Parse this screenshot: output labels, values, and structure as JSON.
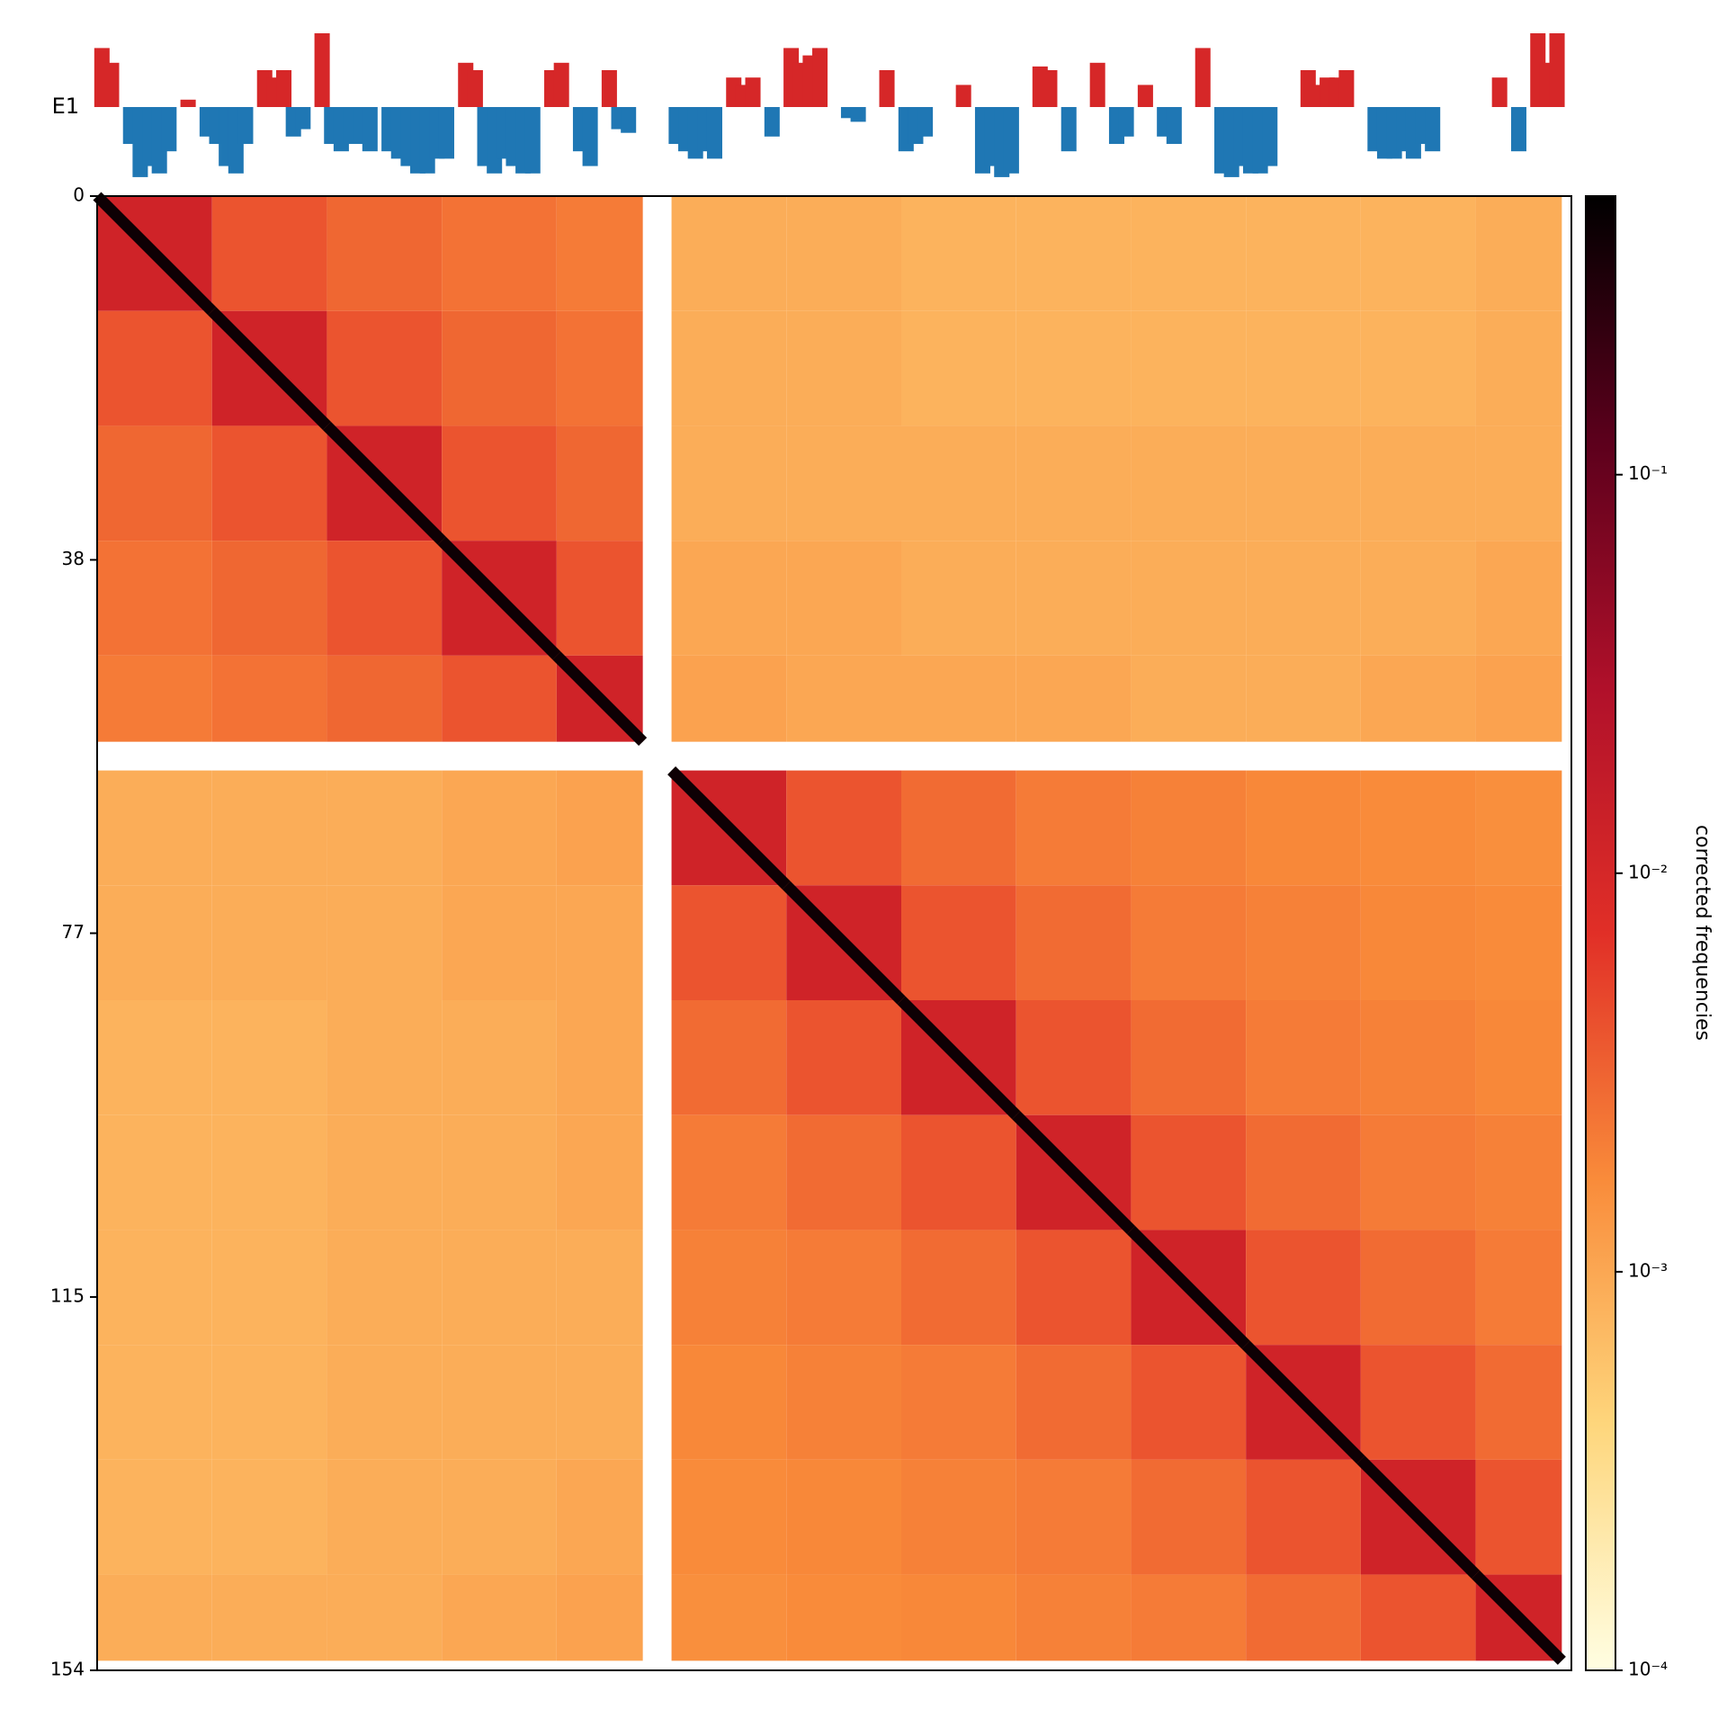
{
  "chart_data": {
    "type": "heatmap",
    "track": {
      "label": "E1",
      "ylim": [
        -1,
        1
      ],
      "positive_color": "#d62728",
      "negative_color": "#1f77b4",
      "x": [
        0,
        1,
        3,
        4,
        5,
        6,
        7,
        9,
        11,
        12,
        13,
        14,
        15,
        17,
        18,
        19,
        20,
        21,
        23,
        24,
        25,
        26,
        27,
        28,
        30,
        31,
        32,
        33,
        34,
        35,
        36,
        38,
        39,
        40,
        41,
        42,
        43,
        44,
        45,
        47,
        48,
        50,
        51,
        53,
        54,
        55,
        60,
        61,
        62,
        63,
        64,
        66,
        67,
        68,
        70,
        72,
        73,
        74,
        75,
        78,
        79,
        82,
        84,
        85,
        86,
        90,
        92,
        93,
        94,
        95,
        98,
        99,
        101,
        104,
        106,
        107,
        109,
        111,
        112,
        115,
        117,
        118,
        119,
        120,
        121,
        122,
        126,
        127,
        128,
        129,
        130,
        133,
        134,
        135,
        136,
        137,
        138,
        139,
        146,
        148,
        150,
        151,
        152
      ],
      "values": [
        0.8,
        0.6,
        -0.5,
        -0.95,
        -0.8,
        -0.9,
        -0.6,
        0.1,
        -0.4,
        -0.5,
        -0.8,
        -0.9,
        -0.5,
        0.5,
        0.4,
        0.5,
        -0.4,
        -0.3,
        1.0,
        -0.5,
        -0.6,
        -0.5,
        -0.5,
        -0.6,
        -0.6,
        -0.7,
        -0.8,
        -0.9,
        -0.9,
        -0.7,
        -0.7,
        0.6,
        0.5,
        -0.8,
        -0.9,
        -0.7,
        -0.8,
        -0.9,
        -0.9,
        0.5,
        0.6,
        -0.6,
        -0.8,
        0.5,
        -0.3,
        -0.35,
        -0.5,
        -0.6,
        -0.7,
        -0.6,
        -0.7,
        0.4,
        0.3,
        0.4,
        -0.4,
        0.8,
        0.6,
        0.7,
        0.8,
        -0.15,
        -0.2,
        0.5,
        -0.6,
        -0.5,
        -0.4,
        0.3,
        -0.9,
        -0.8,
        -0.95,
        -0.9,
        0.55,
        0.5,
        -0.6,
        0.6,
        -0.5,
        -0.4,
        0.3,
        -0.4,
        -0.5,
        0.8,
        -0.9,
        -0.95,
        -0.8,
        -0.9,
        -0.9,
        -0.8,
        0.5,
        0.3,
        0.4,
        0.4,
        0.5,
        -0.6,
        -0.7,
        -0.7,
        -0.6,
        -0.7,
        -0.5,
        -0.6,
        0.4,
        -0.6,
        1.0,
        0.6,
        1.0
      ]
    },
    "bin_edges": [
      0,
      12,
      24,
      36,
      48,
      57,
      60,
      72,
      84,
      96,
      108,
      120,
      132,
      144,
      153
    ],
    "ylim": [
      0,
      154
    ],
    "yticks": [
      0,
      38,
      77,
      115,
      154
    ],
    "matrix": [
      [
        0.012,
        0.004,
        0.003,
        0.0025,
        0.0022,
        null,
        0.0009,
        0.0009,
        0.0008,
        0.0008,
        0.0008,
        0.0008,
        0.0008,
        0.0009
      ],
      [
        0.004,
        0.012,
        0.004,
        0.003,
        0.0025,
        null,
        0.0009,
        0.0009,
        0.0008,
        0.0008,
        0.0008,
        0.0008,
        0.0008,
        0.0009
      ],
      [
        0.003,
        0.004,
        0.012,
        0.004,
        0.003,
        null,
        0.0009,
        0.0009,
        0.0009,
        0.0009,
        0.0009,
        0.0009,
        0.0009,
        0.0009
      ],
      [
        0.0025,
        0.003,
        0.004,
        0.012,
        0.004,
        null,
        0.001,
        0.001,
        0.0009,
        0.0009,
        0.0009,
        0.0009,
        0.0009,
        0.001
      ],
      [
        0.0022,
        0.0025,
        0.003,
        0.004,
        0.012,
        null,
        0.0011,
        0.001,
        0.001,
        0.001,
        0.0009,
        0.0009,
        0.001,
        0.0011
      ],
      [
        null,
        null,
        null,
        null,
        null,
        null,
        null,
        null,
        null,
        null,
        null,
        null,
        null,
        null
      ],
      [
        0.0009,
        0.0009,
        0.0009,
        0.001,
        0.0011,
        null,
        0.012,
        0.004,
        0.0028,
        0.0022,
        0.002,
        0.0018,
        0.0017,
        0.0016
      ],
      [
        0.0009,
        0.0009,
        0.0009,
        0.001,
        0.001,
        null,
        0.004,
        0.012,
        0.004,
        0.0028,
        0.0022,
        0.002,
        0.0018,
        0.0017
      ],
      [
        0.0008,
        0.0008,
        0.0009,
        0.0009,
        0.001,
        null,
        0.0028,
        0.004,
        0.012,
        0.004,
        0.0028,
        0.0022,
        0.002,
        0.0018
      ],
      [
        0.0008,
        0.0008,
        0.0009,
        0.0009,
        0.001,
        null,
        0.0022,
        0.0028,
        0.004,
        0.012,
        0.004,
        0.0028,
        0.0022,
        0.002
      ],
      [
        0.0008,
        0.0008,
        0.0009,
        0.0009,
        0.0009,
        null,
        0.002,
        0.0022,
        0.0028,
        0.004,
        0.012,
        0.004,
        0.0028,
        0.0022
      ],
      [
        0.0008,
        0.0008,
        0.0009,
        0.0009,
        0.0009,
        null,
        0.0018,
        0.002,
        0.0022,
        0.0028,
        0.004,
        0.012,
        0.004,
        0.0028
      ],
      [
        0.0008,
        0.0008,
        0.0009,
        0.0009,
        0.001,
        null,
        0.0017,
        0.0018,
        0.002,
        0.0022,
        0.0028,
        0.004,
        0.012,
        0.004
      ],
      [
        0.0009,
        0.0009,
        0.0009,
        0.001,
        0.0011,
        null,
        0.0016,
        0.0017,
        0.0018,
        0.002,
        0.0022,
        0.0028,
        0.004,
        0.012
      ]
    ],
    "diagonal": [
      0.4,
      0.4,
      0.4,
      0.4,
      0.4,
      null,
      0.4,
      0.4,
      0.4,
      0.4,
      0.4,
      0.4,
      0.4,
      0.4
    ],
    "log_scale": true,
    "clim": [
      0.0001,
      0.5
    ],
    "colormap": [
      "#fffee2",
      "#fed67c",
      "#f98b3a",
      "#e12f27",
      "#b0102a",
      "#5c001c",
      "#000000"
    ],
    "colorbar_label": "corrected frequencies",
    "colorbar_ticks": [
      {
        "value": 0.1,
        "label": "10⁻¹"
      },
      {
        "value": 0.01,
        "label": "10⁻²"
      },
      {
        "value": 0.001,
        "label": "10⁻³"
      },
      {
        "value": 0.0001,
        "label": "10⁻⁴"
      }
    ]
  }
}
